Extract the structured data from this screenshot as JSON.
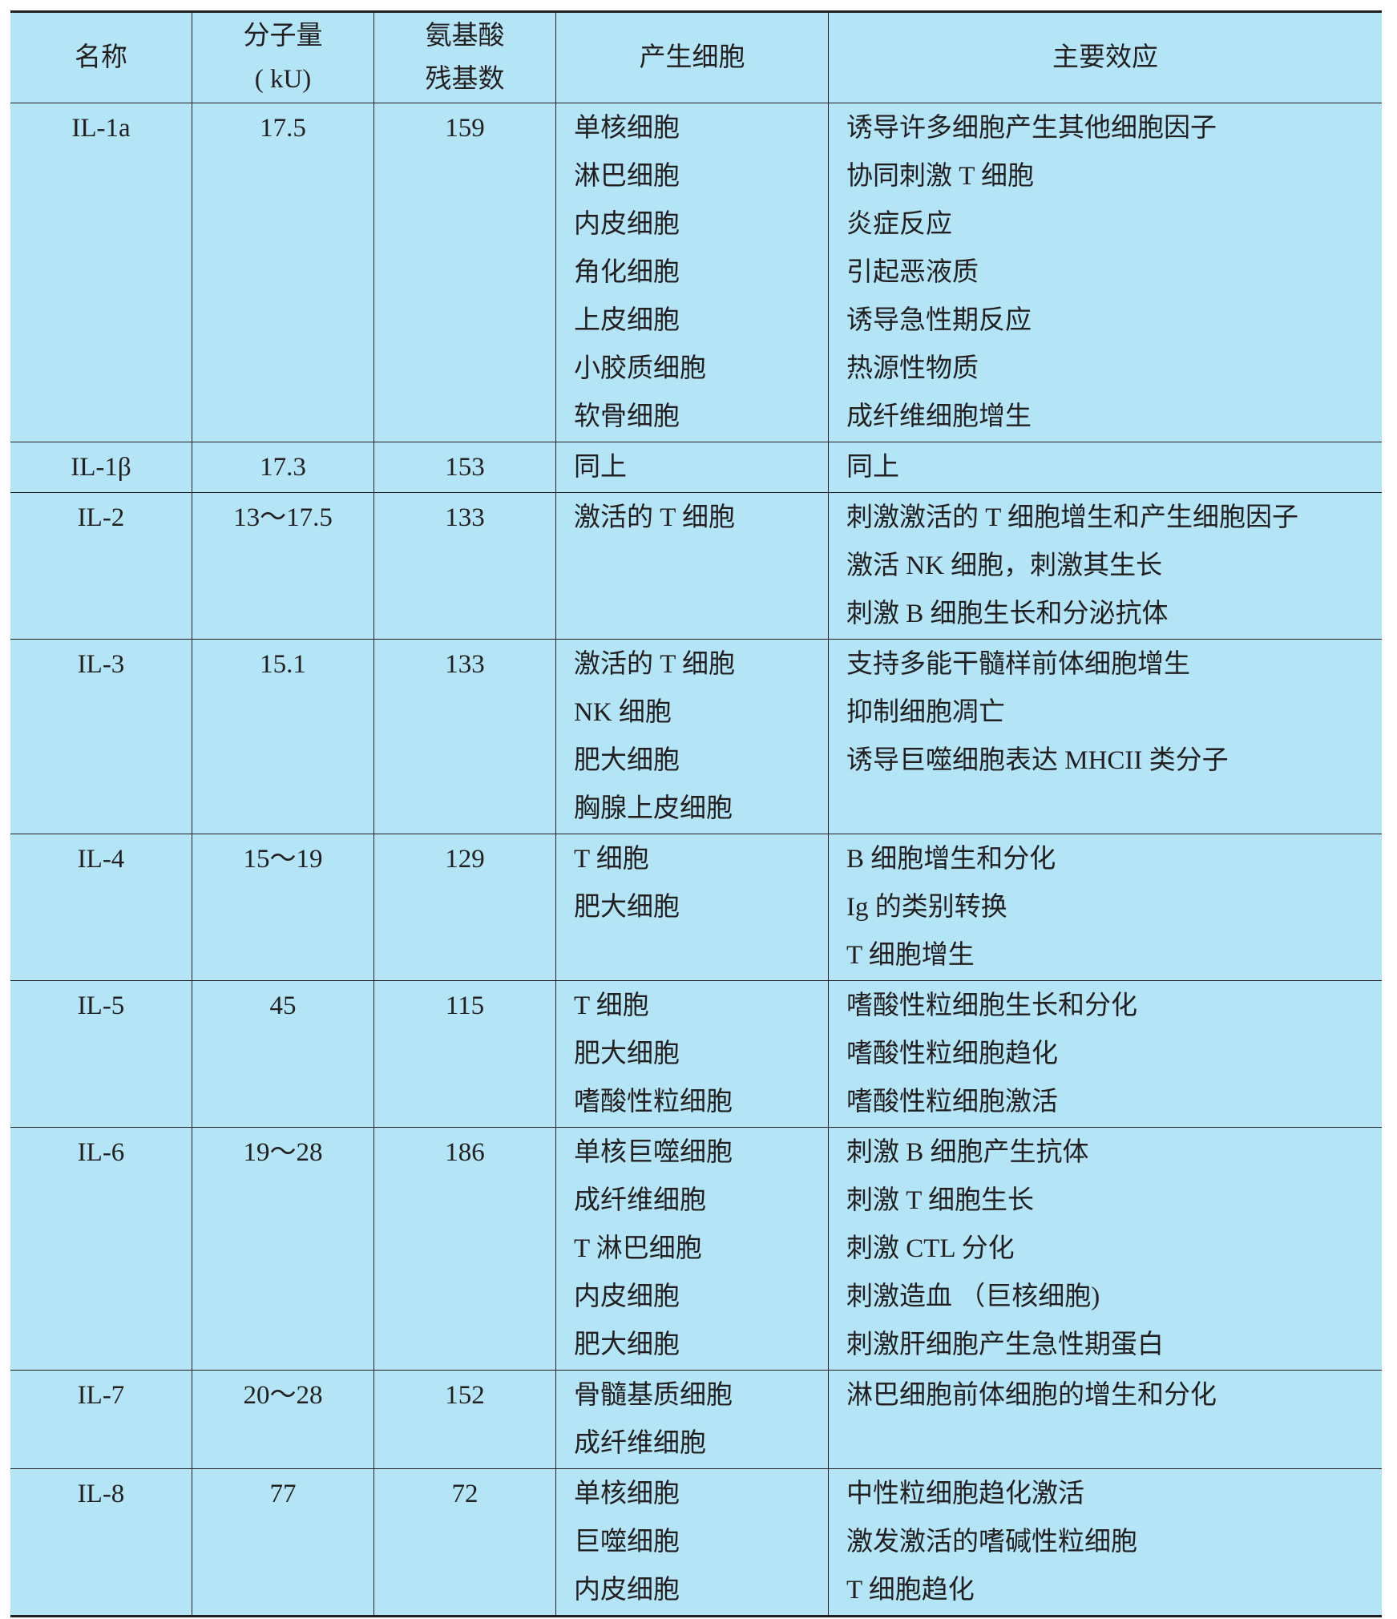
{
  "table": {
    "header": [
      [
        "名称"
      ],
      [
        "分子量",
        "( kU)"
      ],
      [
        "氨基酸",
        "残基数"
      ],
      [
        "产生细胞"
      ],
      [
        "主要效应"
      ]
    ],
    "rows": [
      [
        [
          "IL-1a"
        ],
        [
          "17.5"
        ],
        [
          "159"
        ],
        [
          "单核细胞",
          "淋巴细胞",
          "内皮细胞",
          "角化细胞",
          "上皮细胞",
          "小胶质细胞",
          "软骨细胞"
        ],
        [
          "诱导许多细胞产生其他细胞因子",
          "协同刺激 T 细胞",
          "炎症反应",
          "引起恶液质",
          "诱导急性期反应",
          "热源性物质",
          "成纤维细胞增生"
        ]
      ],
      [
        [
          "IL-1β"
        ],
        [
          "17.3"
        ],
        [
          "153"
        ],
        [
          "同上"
        ],
        [
          "同上"
        ]
      ],
      [
        [
          "IL-2"
        ],
        [
          "13～17.5"
        ],
        [
          "133"
        ],
        [
          "激活的 T 细胞"
        ],
        [
          "刺激激活的 T 细胞增生和产生细胞因子",
          "激活 NK 细胞，刺激其生长",
          "刺激 B 细胞生长和分泌抗体"
        ]
      ],
      [
        [
          "IL-3"
        ],
        [
          "15.1"
        ],
        [
          "133"
        ],
        [
          "激活的 T 细胞",
          "NK 细胞",
          "肥大细胞",
          "胸腺上皮细胞"
        ],
        [
          "支持多能干髓样前体细胞增生",
          "抑制细胞凋亡",
          "诱导巨噬细胞表达 MHCII 类分子"
        ]
      ],
      [
        [
          "IL-4"
        ],
        [
          "15～19"
        ],
        [
          "129"
        ],
        [
          "T 细胞",
          "肥大细胞"
        ],
        [
          "B 细胞增生和分化",
          "Ig 的类别转换",
          "T 细胞增生"
        ]
      ],
      [
        [
          "IL-5"
        ],
        [
          "45"
        ],
        [
          "115"
        ],
        [
          "T 细胞",
          "肥大细胞",
          "嗜酸性粒细胞"
        ],
        [
          "嗜酸性粒细胞生长和分化",
          "嗜酸性粒细胞趋化",
          "嗜酸性粒细胞激活"
        ]
      ],
      [
        [
          "IL-6"
        ],
        [
          "19～28"
        ],
        [
          "186"
        ],
        [
          "单核巨噬细胞",
          "成纤维细胞",
          "T 淋巴细胞",
          "内皮细胞",
          "肥大细胞"
        ],
        [
          "刺激 B 细胞产生抗体",
          "刺激 T 细胞生长",
          "刺激 CTL 分化",
          "刺激造血 （巨核细胞)",
          "刺激肝细胞产生急性期蛋白"
        ]
      ],
      [
        [
          "IL-7"
        ],
        [
          "20～28"
        ],
        [
          "152"
        ],
        [
          "骨髓基质细胞",
          "成纤维细胞"
        ],
        [
          "淋巴细胞前体细胞的增生和分化"
        ]
      ],
      [
        [
          "IL-8"
        ],
        [
          "77"
        ],
        [
          "72"
        ],
        [
          "单核细胞",
          "巨噬细胞",
          "内皮细胞"
        ],
        [
          "中性粒细胞趋化激活",
          "激发激活的嗜碱性粒细胞",
          "T 细胞趋化"
        ]
      ]
    ]
  }
}
